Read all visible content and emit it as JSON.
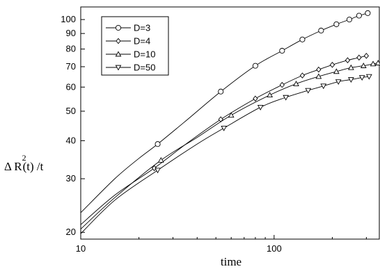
{
  "chart_data": {
    "type": "line",
    "xlabel": "time",
    "ylabel_parts": {
      "pre": "Δ R",
      "exponent": "2",
      "post": "(t) /t"
    },
    "x_scale": "log",
    "y_scale": "log",
    "xlim": [
      10,
      350
    ],
    "ylim": [
      19,
      110
    ],
    "x_ticks": [
      {
        "value": 10,
        "label": "10"
      },
      {
        "value": 100,
        "label": "100"
      }
    ],
    "y_ticks": [
      {
        "value": 20,
        "label": "20"
      },
      {
        "value": 30,
        "label": "30"
      },
      {
        "value": 40,
        "label": "40"
      },
      {
        "value": 50,
        "label": "50"
      },
      {
        "value": 60,
        "label": "60"
      },
      {
        "value": 70,
        "label": "70"
      },
      {
        "value": 80,
        "label": "80"
      },
      {
        "value": 90,
        "label": "90"
      },
      {
        "value": 100,
        "label": "100"
      }
    ],
    "grid": false,
    "legend_position": "top-left",
    "series": [
      {
        "name": "D=3",
        "marker": "circle",
        "curve": {
          "x": [
            10,
            15,
            20,
            25,
            35,
            53,
            80,
            110,
            140,
            175,
            210,
            245,
            275,
            305
          ],
          "y": [
            23.2,
            30.0,
            35.0,
            39.0,
            46.5,
            58.0,
            70.5,
            79.0,
            86.0,
            92.0,
            96.5,
            100.0,
            103.0,
            105.0
          ]
        },
        "markers": {
          "x": [
            25,
            53,
            80,
            110,
            140,
            175,
            210,
            245,
            275,
            305
          ],
          "y": [
            39.0,
            58.0,
            70.5,
            79.0,
            86.0,
            92.0,
            96.5,
            100.0,
            103.0,
            105.0
          ]
        }
      },
      {
        "name": "D=4",
        "marker": "diamond",
        "curve": {
          "x": [
            10,
            15,
            24,
            35,
            53,
            80,
            110,
            140,
            170,
            200,
            240,
            275,
            300
          ],
          "y": [
            21.2,
            26.5,
            32.5,
            39.0,
            47.0,
            55.0,
            61.0,
            65.5,
            68.5,
            71.0,
            73.5,
            75.0,
            76.0
          ]
        },
        "markers": {
          "x": [
            24,
            53,
            80,
            110,
            140,
            170,
            200,
            240,
            275,
            300
          ],
          "y": [
            32.5,
            47.0,
            55.0,
            61.0,
            65.5,
            68.5,
            71.0,
            73.5,
            75.0,
            76.0
          ]
        }
      },
      {
        "name": "D=10",
        "marker": "triangle-up",
        "curve": {
          "x": [
            10,
            15,
            26,
            40,
            60,
            95,
            130,
            170,
            210,
            250,
            290,
            325,
            345
          ],
          "y": [
            20.5,
            26.0,
            34.5,
            41.0,
            48.5,
            56.5,
            61.5,
            65.0,
            67.5,
            69.5,
            70.5,
            71.5,
            72.0
          ]
        },
        "markers": {
          "x": [
            26,
            60,
            95,
            130,
            170,
            210,
            250,
            290,
            325,
            345
          ],
          "y": [
            34.5,
            48.5,
            56.5,
            61.5,
            65.0,
            67.5,
            69.5,
            70.5,
            71.5,
            72.0
          ]
        }
      },
      {
        "name": "D=50",
        "marker": "triangle-down",
        "curve": {
          "x": [
            10,
            15,
            25,
            40,
            55,
            85,
            115,
            150,
            180,
            215,
            250,
            285,
            310
          ],
          "y": [
            19.8,
            25.5,
            32.0,
            39.0,
            44.0,
            51.5,
            55.5,
            58.5,
            60.5,
            62.5,
            63.5,
            64.5,
            65.0
          ]
        },
        "markers": {
          "x": [
            25,
            55,
            85,
            115,
            150,
            180,
            215,
            250,
            285,
            310
          ],
          "y": [
            32.0,
            44.0,
            51.5,
            55.5,
            58.5,
            60.5,
            62.5,
            63.5,
            64.5,
            65.0
          ]
        }
      }
    ]
  }
}
